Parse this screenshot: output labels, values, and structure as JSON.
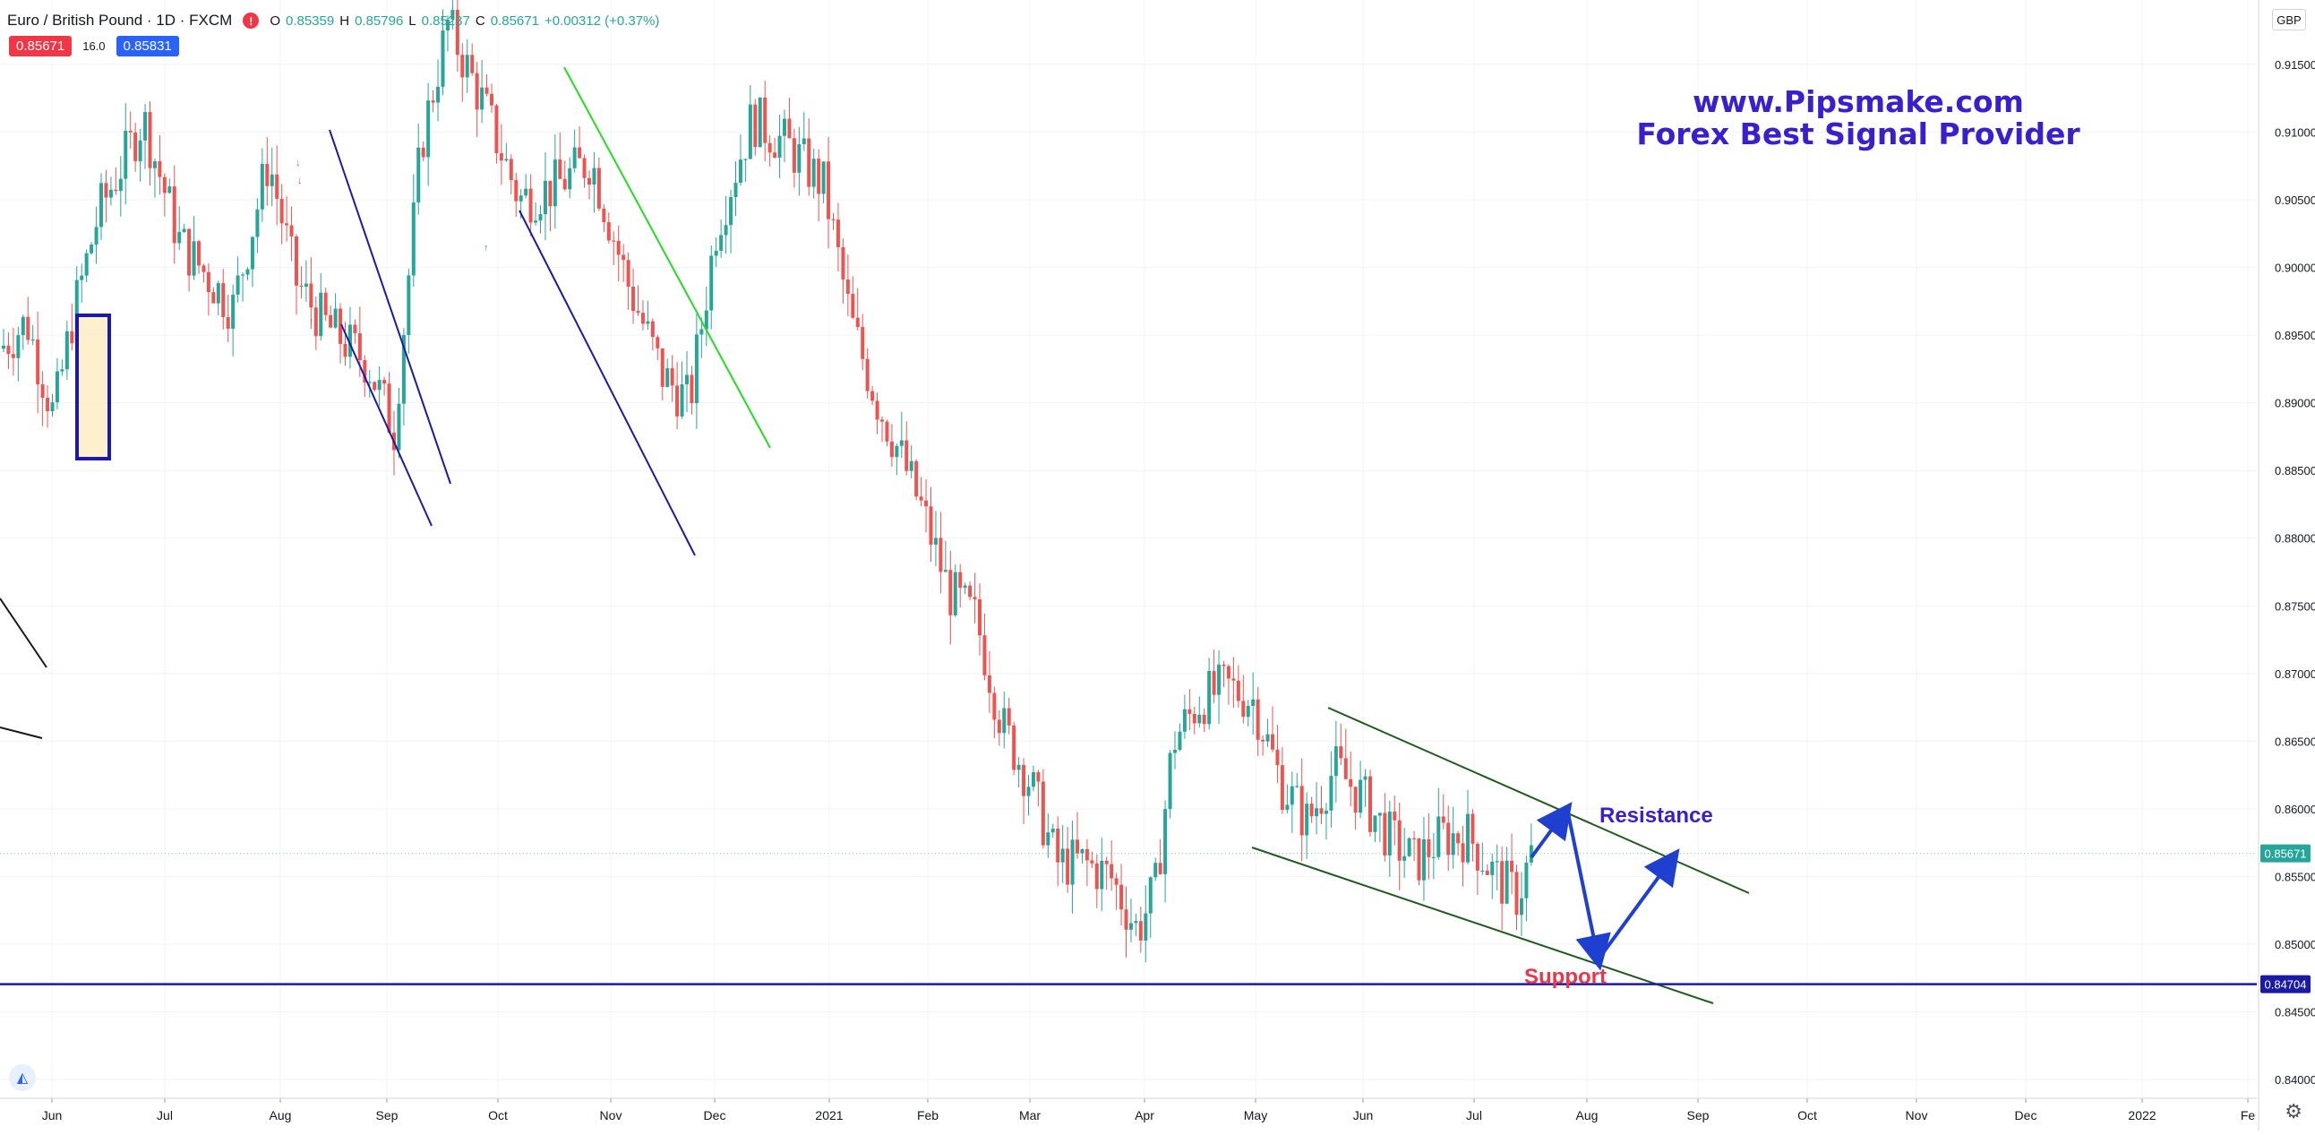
{
  "header": {
    "symbol": "Euro / British Pound · 1D · FXCM",
    "open_label": "O",
    "open": "0.85359",
    "high_label": "H",
    "high": "0.85796",
    "low_label": "L",
    "low": "0.85237",
    "close_label": "C",
    "close": "0.85671",
    "change": "+0.00312 (+0.37%)",
    "sell_price": "0.85671",
    "spread": "16.0",
    "buy_price": "0.85831"
  },
  "brand": {
    "line1": "www.Pipsmake.com",
    "line2": "Forex Best Signal Provider"
  },
  "currency_button": "GBP",
  "annotations": {
    "resistance": "Resistance",
    "support": "Support"
  },
  "colors": {
    "up": "#26a69a",
    "down": "#ef5350",
    "brand": "#3a1fd0",
    "support_line": "#1a1aa6",
    "channel": "#1e5c1e",
    "arrow": "#1f3fd1",
    "green_line": "#22dd22",
    "blue_line": "#1a1aa6",
    "support_text": "#e8364a"
  },
  "chart_data": {
    "type": "candlestick",
    "title": "",
    "y_axis_ticks": [
      "0.91500",
      "0.91000",
      "0.90500",
      "0.90000",
      "0.89500",
      "0.89000",
      "0.88500",
      "0.88000",
      "0.87500",
      "0.87000",
      "0.86500",
      "0.86000",
      "0.85500",
      "0.85000",
      "0.84500",
      "0.84000"
    ],
    "y_axis_side": "right",
    "x_axis_ticks": [
      "Jun",
      "Jul",
      "Aug",
      "Sep",
      "Oct",
      "Nov",
      "Dec",
      "2021",
      "Feb",
      "Mar",
      "Apr",
      "May",
      "Jun",
      "Jul",
      "Aug",
      "Sep",
      "Oct",
      "Nov",
      "Dec",
      "2022",
      "Fe"
    ],
    "ylim": [
      0.8393,
      0.9195
    ],
    "current_price_label": "0.85671",
    "support_level_label": "0.84704",
    "current_price": 0.85671,
    "support_level": 0.84704,
    "candles_monthly_path": [
      {
        "month": "Jun 2020",
        "o": 0.892,
        "c": 0.896,
        "h": 0.899,
        "l": 0.889
      },
      {
        "month": "Jul 2020",
        "o": 0.903,
        "c": 0.901,
        "h": 0.913,
        "l": 0.895
      },
      {
        "month": "Aug 2020",
        "o": 0.903,
        "c": 0.896,
        "h": 0.909,
        "l": 0.899
      },
      {
        "month": "Sep 2020",
        "o": 0.889,
        "c": 0.912,
        "h": 0.919,
        "l": 0.888
      },
      {
        "month": "Oct 2020",
        "o": 0.908,
        "c": 0.904,
        "h": 0.914,
        "l": 0.901
      },
      {
        "month": "Nov 2020",
        "o": 0.902,
        "c": 0.892,
        "h": 0.9,
        "l": 0.887
      },
      {
        "month": "Dec 2020",
        "o": 0.905,
        "c": 0.909,
        "h": 0.919,
        "l": 0.898
      },
      {
        "month": "Jan 2021",
        "o": 0.895,
        "c": 0.889,
        "h": 0.903,
        "l": 0.886
      },
      {
        "month": "Feb 2021",
        "o": 0.886,
        "c": 0.87,
        "h": 0.884,
        "l": 0.872
      },
      {
        "month": "Mar 2021",
        "o": 0.864,
        "c": 0.856,
        "h": 0.864,
        "l": 0.855
      },
      {
        "month": "Apr 2021",
        "o": 0.852,
        "c": 0.867,
        "h": 0.868,
        "l": 0.847
      },
      {
        "month": "May 2021",
        "o": 0.869,
        "c": 0.862,
        "h": 0.872,
        "l": 0.859
      },
      {
        "month": "Jun 2021",
        "o": 0.862,
        "c": 0.859,
        "h": 0.863,
        "l": 0.856
      },
      {
        "month": "Jul 2021",
        "o": 0.859,
        "c": 0.8567,
        "h": 0.86,
        "l": 0.852
      }
    ]
  }
}
